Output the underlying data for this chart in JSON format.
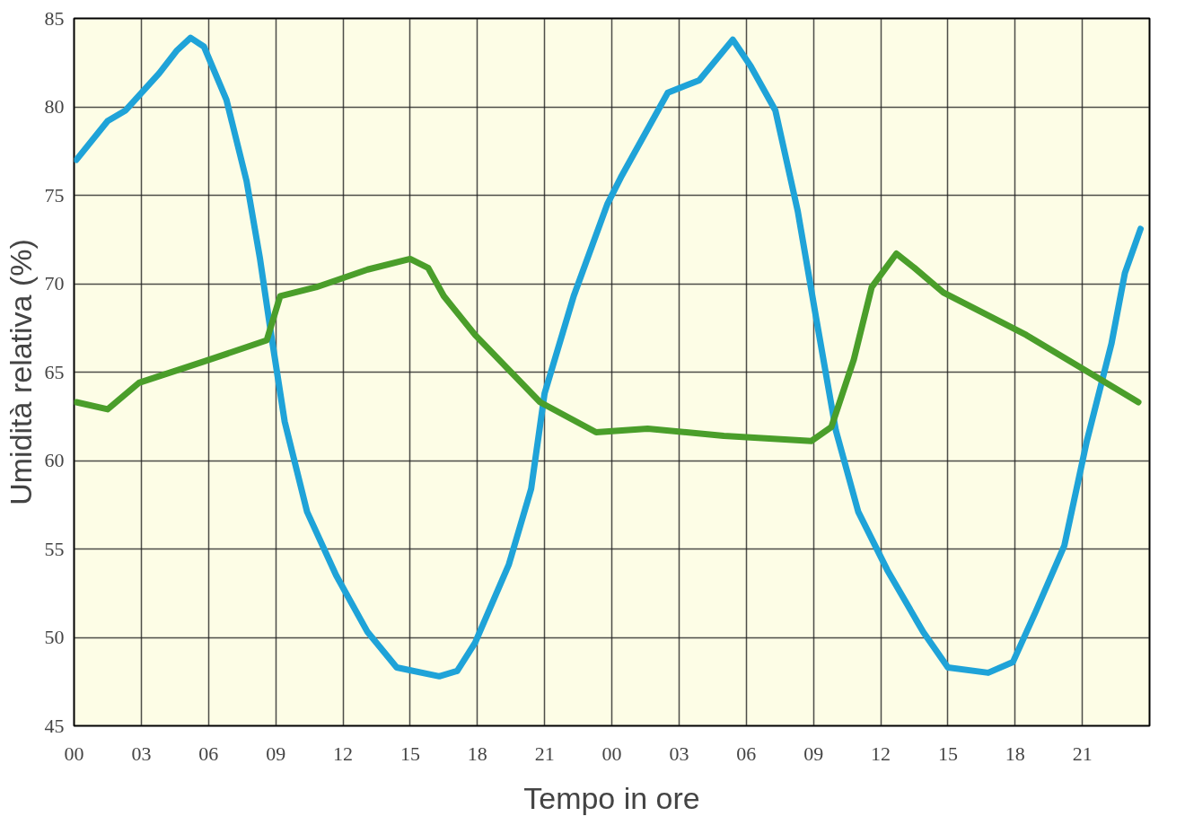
{
  "chart_data": {
    "type": "line",
    "xlabel": "Tempo in ore",
    "ylabel": "Umidità relativa (%)",
    "xlim": [
      0,
      48
    ],
    "ylim": [
      45,
      85
    ],
    "xticks": [
      {
        "value": 0,
        "label": "00"
      },
      {
        "value": 3,
        "label": "03"
      },
      {
        "value": 6,
        "label": "06"
      },
      {
        "value": 9,
        "label": "09"
      },
      {
        "value": 12,
        "label": "12"
      },
      {
        "value": 15,
        "label": "15"
      },
      {
        "value": 18,
        "label": "18"
      },
      {
        "value": 21,
        "label": "21"
      },
      {
        "value": 24,
        "label": "00"
      },
      {
        "value": 27,
        "label": "03"
      },
      {
        "value": 30,
        "label": "06"
      },
      {
        "value": 33,
        "label": "09"
      },
      {
        "value": 36,
        "label": "12"
      },
      {
        "value": 39,
        "label": "15"
      },
      {
        "value": 42,
        "label": "18"
      },
      {
        "value": 45,
        "label": "21"
      },
      {
        "value": 48,
        "label": null
      }
    ],
    "yticks": [
      45,
      50,
      55,
      60,
      65,
      70,
      75,
      80,
      85
    ],
    "grid": true,
    "line_style": "solid",
    "series": [
      {
        "color": "#1fa3d8",
        "x": [
          0.1,
          1.5,
          2.3,
          3.8,
          4.6,
          5.2,
          5.8,
          6.8,
          7.7,
          8.3,
          8.8,
          9.4,
          10.4,
          11.7,
          13.1,
          14.4,
          16.3,
          17.1,
          17.9,
          19.4,
          20.4,
          21.0,
          22.3,
          23.8,
          24.4,
          26.5,
          27.9,
          29.4,
          30.2,
          31.3,
          32.3,
          33.1,
          34.0,
          35.0,
          36.3,
          37.9,
          39.0,
          40.8,
          41.9,
          42.9,
          44.2,
          45.2,
          46.3,
          46.9,
          47.6
        ],
        "values": [
          77.0,
          79.2,
          79.8,
          81.9,
          83.2,
          83.9,
          83.4,
          80.4,
          75.8,
          71.4,
          67.1,
          62.2,
          57.1,
          53.5,
          50.3,
          48.3,
          47.8,
          48.1,
          49.7,
          54.1,
          58.4,
          63.8,
          69.3,
          74.5,
          76.0,
          80.8,
          81.5,
          83.8,
          82.3,
          79.8,
          74.1,
          68.2,
          61.7,
          57.1,
          53.8,
          50.3,
          48.3,
          48.0,
          48.6,
          51.4,
          55.2,
          61.1,
          66.6,
          70.6,
          73.1
        ]
      },
      {
        "color": "#4a9e2a",
        "x": [
          0.1,
          1.5,
          2.9,
          5.8,
          8.6,
          9.2,
          10.8,
          13.1,
          15.0,
          15.8,
          16.5,
          17.9,
          20.8,
          23.3,
          25.6,
          29.0,
          32.9,
          33.8,
          34.8,
          35.6,
          36.7,
          37.5,
          38.8,
          40.8,
          42.5,
          45.4,
          47.5
        ],
        "values": [
          63.3,
          62.9,
          64.4,
          65.6,
          66.8,
          69.3,
          69.8,
          70.8,
          71.4,
          70.9,
          69.3,
          67.1,
          63.3,
          61.6,
          61.8,
          61.4,
          61.1,
          61.9,
          65.7,
          69.8,
          71.7,
          70.9,
          69.5,
          68.2,
          67.1,
          64.9,
          63.3
        ]
      }
    ]
  }
}
